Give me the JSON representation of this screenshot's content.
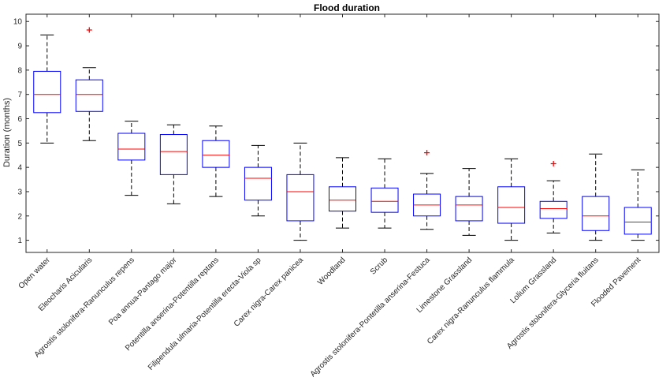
{
  "chart_data": {
    "type": "box",
    "title": "Flood duration",
    "xlabel": "",
    "ylabel": "Duration (months)",
    "ylim": [
      0.5,
      10.3
    ],
    "yticks": [
      1,
      2,
      3,
      4,
      5,
      6,
      7,
      8,
      9,
      10
    ],
    "grid": false,
    "colors": {
      "box": "#0000ff",
      "median": "#ff0000",
      "whisker": "#000000",
      "outlier": "#ff0000"
    },
    "categories": [
      "Open water",
      "Eleocharis Acicularis",
      "Agrostis stolonifera-Ranunculus repens",
      "Poa annua-Pantago major",
      "Potentilla anserina-Potentilla reptans",
      "Filipendula ulmaria-Potentilla erecta-Viola sp",
      "Carex nigra-Carex panicea",
      "Woodland",
      "Scrub",
      "Agrostis stolonifera-Pontetilla anserina-Festuca",
      "Limestone Grassland",
      "Carex nigra-Ranunculus flammula",
      "Lolium Grassland",
      "Agrostis stolonifera-Glyceria fluitans",
      "Flooded Pavement"
    ],
    "boxes": [
      {
        "whisker_low": 5.0,
        "q1": 6.25,
        "median": 7.0,
        "q3": 7.95,
        "whisker_high": 9.45,
        "outliers": []
      },
      {
        "whisker_low": 5.1,
        "q1": 6.3,
        "median": 7.0,
        "q3": 7.6,
        "whisker_high": 8.1,
        "outliers": [
          9.65
        ]
      },
      {
        "whisker_low": 2.85,
        "q1": 4.3,
        "median": 4.75,
        "q3": 5.4,
        "whisker_high": 5.9,
        "outliers": []
      },
      {
        "whisker_low": 2.5,
        "q1": 3.7,
        "median": 4.65,
        "q3": 5.35,
        "whisker_high": 5.75,
        "outliers": []
      },
      {
        "whisker_low": 2.8,
        "q1": 4.0,
        "median": 4.5,
        "q3": 5.1,
        "whisker_high": 5.7,
        "outliers": []
      },
      {
        "whisker_low": 2.0,
        "q1": 2.65,
        "median": 3.55,
        "q3": 4.0,
        "whisker_high": 4.9,
        "outliers": []
      },
      {
        "whisker_low": 1.0,
        "q1": 1.8,
        "median": 3.0,
        "q3": 3.7,
        "whisker_high": 5.0,
        "outliers": []
      },
      {
        "whisker_low": 1.5,
        "q1": 2.2,
        "median": 2.65,
        "q3": 3.2,
        "whisker_high": 4.4,
        "outliers": []
      },
      {
        "whisker_low": 1.5,
        "q1": 2.15,
        "median": 2.6,
        "q3": 3.15,
        "whisker_high": 4.35,
        "outliers": []
      },
      {
        "whisker_low": 1.45,
        "q1": 2.0,
        "median": 2.45,
        "q3": 2.9,
        "whisker_high": 3.75,
        "outliers": [
          4.6
        ]
      },
      {
        "whisker_low": 1.2,
        "q1": 1.8,
        "median": 2.45,
        "q3": 2.8,
        "whisker_high": 3.95,
        "outliers": []
      },
      {
        "whisker_low": 1.0,
        "q1": 1.7,
        "median": 2.35,
        "q3": 3.2,
        "whisker_high": 4.35,
        "outliers": []
      },
      {
        "whisker_low": 1.3,
        "q1": 1.9,
        "median": 2.3,
        "q3": 2.6,
        "whisker_high": 3.45,
        "outliers": [
          4.15
        ]
      },
      {
        "whisker_low": 1.0,
        "q1": 1.4,
        "median": 2.0,
        "q3": 2.8,
        "whisker_high": 4.55,
        "outliers": []
      },
      {
        "whisker_low": 1.0,
        "q1": 1.25,
        "median": 1.75,
        "q3": 2.35,
        "whisker_high": 3.9,
        "outliers": []
      }
    ]
  }
}
